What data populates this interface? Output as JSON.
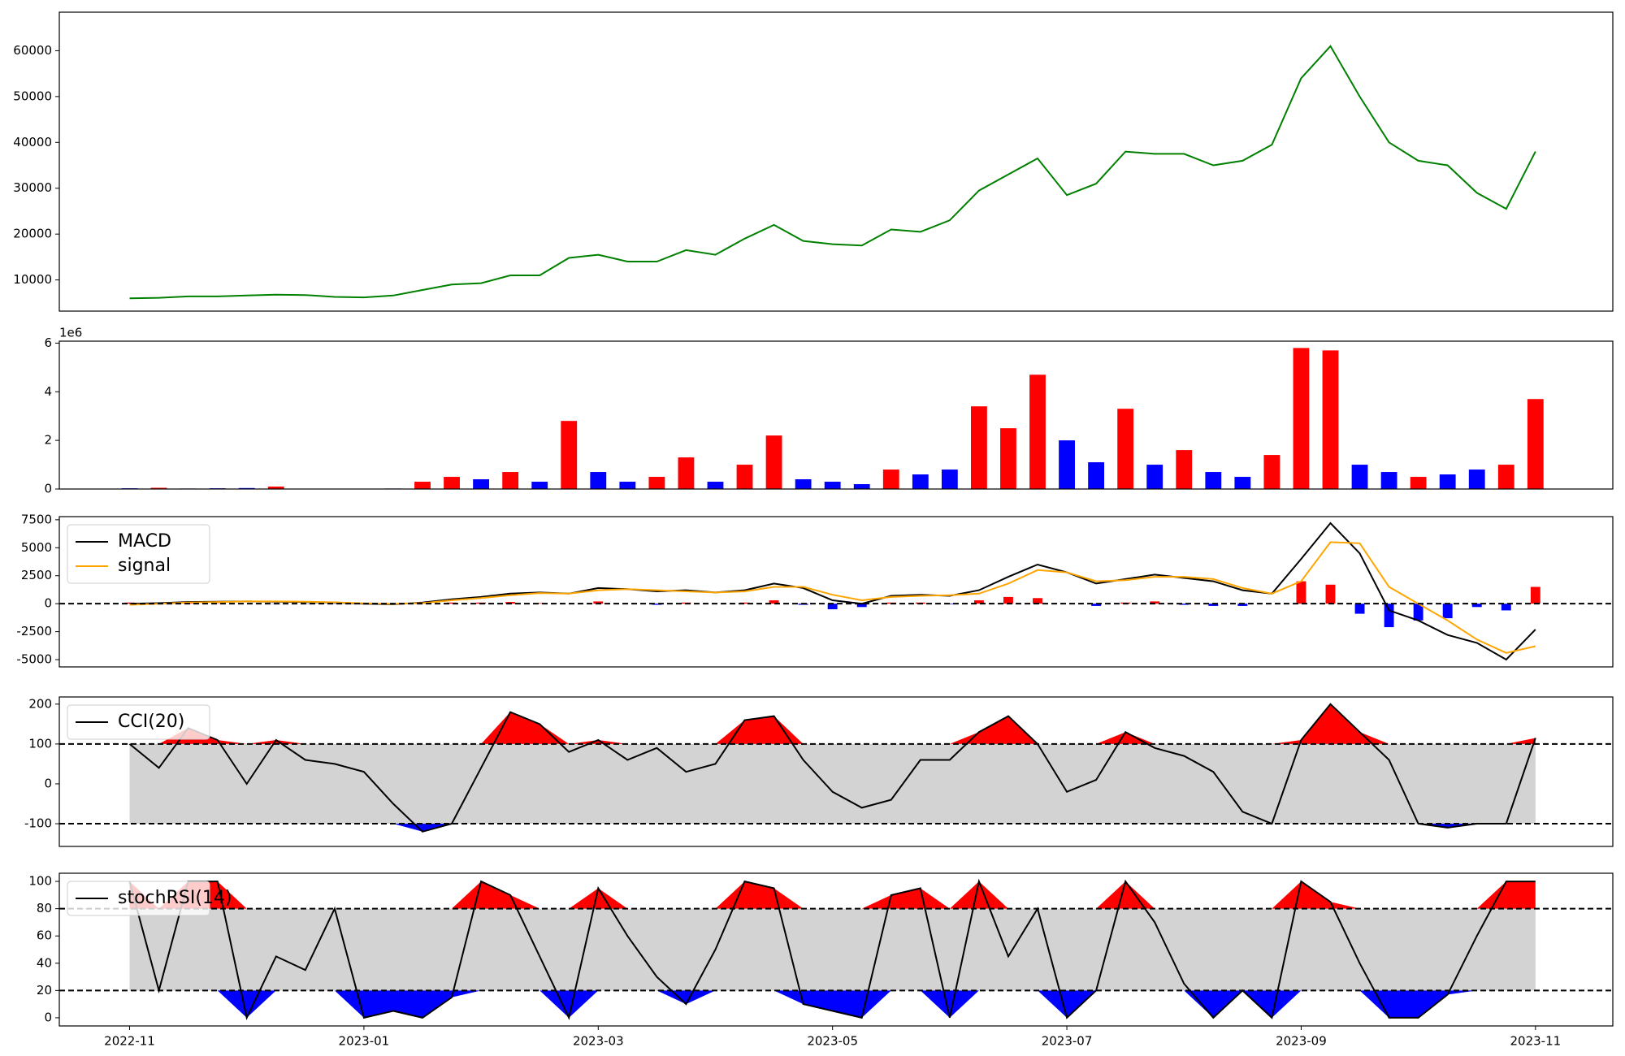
{
  "chart_data": [
    {
      "type": "line",
      "xlim": [
        -0.6,
        12.66
      ],
      "ylim": [
        3200,
        68400
      ],
      "yticks": [
        10000,
        20000,
        30000,
        40000,
        50000,
        60000
      ],
      "grid": false,
      "x": [
        0,
        0.25,
        0.5,
        0.75,
        1,
        1.25,
        1.5,
        1.75,
        2,
        2.25,
        2.5,
        2.75,
        3,
        3.25,
        3.5,
        3.75,
        4,
        4.25,
        4.5,
        4.75,
        5,
        5.25,
        5.5,
        5.75,
        6,
        6.25,
        6.5,
        6.75,
        7,
        7.25,
        7.5,
        7.75,
        8,
        8.25,
        8.5,
        8.75,
        9,
        9.25,
        9.5,
        9.75,
        10,
        10.25,
        10.5,
        10.75,
        11,
        11.25,
        11.5,
        11.75,
        12
      ],
      "series": [
        {
          "color": "green",
          "values": [
            6000,
            6100,
            6400,
            6400,
            6600,
            6800,
            6700,
            6300,
            6200,
            6600,
            7800,
            9000,
            9300,
            11000,
            11000,
            14800,
            15500,
            14000,
            14000,
            16500,
            15500,
            19000,
            22000,
            18500,
            17800,
            17500,
            21000,
            20500,
            23000,
            29500,
            33000,
            36500,
            28500,
            31000,
            38000,
            37500,
            37500,
            35000,
            36000,
            39500,
            54000,
            61000,
            50000,
            40000,
            36000,
            35000,
            29000,
            25500,
            38000
          ]
        }
      ]
    },
    {
      "type": "bar",
      "xlim": [
        -0.6,
        12.66
      ],
      "ylim": [
        0,
        6080000
      ],
      "y_offset_label": "1e6",
      "grid": false,
      "yticks": [
        {
          "value": 0,
          "label": "0"
        },
        {
          "value": 2000000,
          "label": "2"
        },
        {
          "value": 4000000,
          "label": "4"
        },
        {
          "value": 6000000,
          "label": "6"
        }
      ],
      "x": [
        0,
        0.25,
        0.5,
        0.75,
        1,
        1.25,
        1.5,
        1.75,
        2,
        2.25,
        2.5,
        2.75,
        3,
        3.25,
        3.5,
        3.75,
        4,
        4.25,
        4.5,
        4.75,
        5,
        5.25,
        5.5,
        5.75,
        6,
        6.25,
        6.5,
        6.75,
        7,
        7.25,
        7.5,
        7.75,
        8,
        8.25,
        8.5,
        8.75,
        9,
        9.25,
        9.5,
        9.75,
        10,
        10.25,
        10.5,
        10.75,
        11,
        11.25,
        11.5,
        11.75,
        12
      ],
      "series": [
        {
          "color": "red",
          "values": [
            null,
            50000,
            null,
            null,
            null,
            100000,
            null,
            null,
            null,
            null,
            300000,
            500000,
            null,
            700000,
            null,
            2800000,
            null,
            null,
            500000,
            1300000,
            null,
            1000000,
            2200000,
            null,
            null,
            null,
            800000,
            null,
            null,
            3400000,
            2500000,
            4700000,
            null,
            null,
            3300000,
            null,
            1600000,
            null,
            null,
            1400000,
            5800000,
            5700000,
            null,
            null,
            500000,
            null,
            null,
            1000000,
            3700000
          ]
        },
        {
          "color": "blue",
          "values": [
            30000,
            null,
            20000,
            30000,
            40000,
            null,
            10000,
            10000,
            10000,
            20000,
            null,
            null,
            400000,
            null,
            300000,
            null,
            700000,
            300000,
            null,
            null,
            300000,
            null,
            null,
            400000,
            300000,
            200000,
            null,
            600000,
            800000,
            null,
            null,
            null,
            2000000,
            1100000,
            null,
            1000000,
            null,
            700000,
            500000,
            null,
            null,
            null,
            1000000,
            700000,
            null,
            600000,
            800000,
            null,
            null
          ]
        }
      ]
    },
    {
      "type": "macd",
      "xlim": [
        -0.6,
        12.66
      ],
      "ylim": [
        -5650,
        7780
      ],
      "yticks": [
        -5000,
        -2500,
        0,
        2500,
        5000,
        7500
      ],
      "hlines": [
        0
      ],
      "legend": "upper left",
      "grid": false,
      "x": [
        0,
        0.25,
        0.5,
        0.75,
        1,
        1.25,
        1.5,
        1.75,
        2,
        2.25,
        2.5,
        2.75,
        3,
        3.25,
        3.5,
        3.75,
        4,
        4.25,
        4.5,
        4.75,
        5,
        5.25,
        5.5,
        5.75,
        6,
        6.25,
        6.5,
        6.75,
        7,
        7.25,
        7.5,
        7.75,
        8,
        8.25,
        8.5,
        8.75,
        9,
        9.25,
        9.5,
        9.75,
        10,
        10.25,
        10.5,
        10.75,
        11,
        11.25,
        11.5,
        11.75,
        12
      ],
      "series": [
        {
          "name": "MACD",
          "color": "black",
          "values": [
            0,
            50,
            150,
            180,
            200,
            180,
            150,
            100,
            0,
            -50,
            100,
            400,
            600,
            900,
            1000,
            900,
            1400,
            1300,
            1100,
            1200,
            1000,
            1200,
            1800,
            1400,
            300,
            0,
            700,
            800,
            700,
            1200,
            2400,
            3500,
            2800,
            1800,
            2200,
            2600,
            2300,
            2000,
            1200,
            900,
            4000,
            7200,
            4500,
            -600,
            -1500,
            -2800,
            -3500,
            -5000,
            -2300
          ]
        },
        {
          "name": "signal",
          "color": "orange",
          "values": [
            -100,
            0,
            100,
            150,
            200,
            200,
            170,
            120,
            30,
            -20,
            50,
            300,
            500,
            750,
            950,
            900,
            1200,
            1300,
            1200,
            1100,
            1000,
            1100,
            1500,
            1500,
            800,
            300,
            600,
            700,
            750,
            900,
            1800,
            3000,
            2800,
            2000,
            2100,
            2400,
            2400,
            2200,
            1400,
            900,
            2000,
            5500,
            5400,
            1500,
            0,
            -1500,
            -3200,
            -4400,
            -3800
          ]
        }
      ],
      "histogram": {
        "up_color": "red",
        "down_color": "blue",
        "values": [
          100,
          50,
          50,
          30,
          0,
          -20,
          -20,
          -20,
          -30,
          -30,
          50,
          100,
          100,
          150,
          50,
          0,
          200,
          0,
          -100,
          100,
          0,
          100,
          300,
          -100,
          -500,
          -300,
          100,
          100,
          -50,
          300,
          600,
          500,
          0,
          -200,
          100,
          200,
          -100,
          -200,
          -200,
          0,
          2000,
          1700,
          -900,
          -2100,
          -1500,
          -1300,
          -300,
          -600,
          1500
        ]
      }
    },
    {
      "type": "oscillator",
      "xlim": [
        -0.6,
        12.66
      ],
      "ylim": [
        -157,
        218
      ],
      "yticks": [
        -100,
        0,
        100,
        200
      ],
      "hlines": [
        100,
        -100
      ],
      "legend": "upper left",
      "grid": false,
      "band_color": "lightgray",
      "over_color": "red",
      "under_color": "blue",
      "x": [
        0,
        0.25,
        0.5,
        0.75,
        1,
        1.25,
        1.5,
        1.75,
        2,
        2.25,
        2.5,
        2.75,
        3,
        3.25,
        3.5,
        3.75,
        4,
        4.25,
        4.5,
        4.75,
        5,
        5.25,
        5.5,
        5.75,
        6,
        6.25,
        6.5,
        6.75,
        7,
        7.25,
        7.5,
        7.75,
        8,
        8.25,
        8.5,
        8.75,
        9,
        9.25,
        9.5,
        9.75,
        10,
        10.25,
        10.5,
        10.75,
        11,
        11.25,
        11.5,
        11.75,
        12
      ],
      "series": [
        {
          "name": "CCI(20)",
          "color": "black",
          "values": [
            100,
            40,
            140,
            110,
            0,
            110,
            60,
            50,
            30,
            -50,
            -120,
            -100,
            40,
            180,
            150,
            80,
            110,
            60,
            90,
            30,
            50,
            160,
            170,
            60,
            -20,
            -60,
            -40,
            60,
            60,
            130,
            170,
            100,
            -20,
            10,
            130,
            90,
            70,
            30,
            -70,
            -100,
            110,
            200,
            130,
            60,
            -100,
            -110,
            -100,
            -100,
            115
          ]
        }
      ]
    },
    {
      "type": "oscillator",
      "xlim": [
        -0.6,
        12.66
      ],
      "ylim": [
        -6,
        106
      ],
      "yticks": [
        0,
        20,
        40,
        60,
        80,
        100
      ],
      "hlines": [
        80,
        20
      ],
      "legend": "upper left",
      "grid": false,
      "band_color": "lightgray",
      "over_color": "red",
      "under_color": "blue",
      "xticks": [
        {
          "value": 0,
          "label": "2022-11"
        },
        {
          "value": 2,
          "label": "2023-01"
        },
        {
          "value": 4,
          "label": "2023-03"
        },
        {
          "value": 6,
          "label": "2023-05"
        },
        {
          "value": 8,
          "label": "2023-07"
        },
        {
          "value": 10,
          "label": "2023-09"
        },
        {
          "value": 12,
          "label": "2023-11"
        }
      ],
      "x": [
        0,
        0.25,
        0.5,
        0.75,
        1,
        1.25,
        1.5,
        1.75,
        2,
        2.25,
        2.5,
        2.75,
        3,
        3.25,
        3.5,
        3.75,
        4,
        4.25,
        4.5,
        4.75,
        5,
        5.25,
        5.5,
        5.75,
        6,
        6.25,
        6.5,
        6.75,
        7,
        7.25,
        7.5,
        7.75,
        8,
        8.25,
        8.5,
        8.75,
        9,
        9.25,
        9.5,
        9.75,
        10,
        10.25,
        10.5,
        10.75,
        11,
        11.25,
        11.5,
        11.75,
        12
      ],
      "series": [
        {
          "name": "stochRSI(14)",
          "color": "black",
          "values": [
            100,
            20,
            100,
            100,
            0,
            45,
            35,
            80,
            0,
            5,
            0,
            15,
            100,
            90,
            45,
            0,
            95,
            60,
            30,
            10,
            50,
            100,
            95,
            10,
            5,
            0,
            90,
            95,
            0,
            100,
            45,
            80,
            0,
            20,
            100,
            70,
            25,
            0,
            20,
            0,
            100,
            85,
            40,
            0,
            0,
            17,
            60,
            100,
            100
          ]
        }
      ]
    }
  ]
}
